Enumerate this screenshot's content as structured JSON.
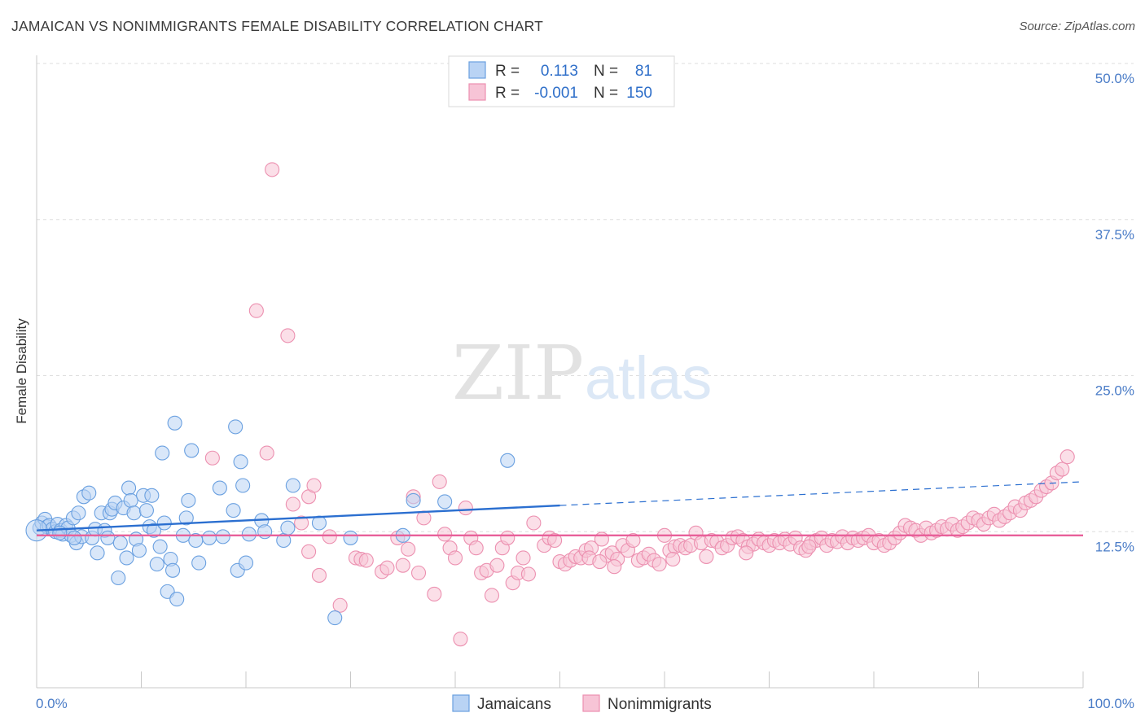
{
  "title": "JAMAICAN VS NONIMMIGRANTS FEMALE DISABILITY CORRELATION CHART",
  "source": "Source: ZipAtlas.com",
  "watermark": {
    "zip": "ZIP",
    "atlas": "atlas"
  },
  "chart_data": {
    "type": "scatter",
    "ylabel": "Female Disability",
    "xlabel": "",
    "xlim": [
      0,
      100
    ],
    "ylim": [
      0,
      50
    ],
    "y_ticks": [
      12.5,
      25.0,
      37.5,
      50.0
    ],
    "y_tick_labels": [
      "12.5%",
      "25.0%",
      "37.5%",
      "50.0%"
    ],
    "x_tick_labels": [
      "0.0%",
      "100.0%"
    ],
    "legend": {
      "position": "top-center",
      "rows": [
        {
          "r_label": "R =",
          "r_value": "0.113",
          "n_label": "N =",
          "n_value": "81"
        },
        {
          "r_label": "R =",
          "r_value": "-0.001",
          "n_label": "N =",
          "n_value": "150"
        }
      ]
    },
    "series": [
      {
        "name": "Jamaicans",
        "color": "#6aa0e0",
        "fill": "#b9d3f4",
        "trend": {
          "x0": 0,
          "y0": 12.6,
          "x1": 50,
          "y1": 14.6,
          "dash_to_x": 100,
          "dash_to_y": 16.5,
          "color": "#2b6fd0"
        },
        "points": [
          [
            0.3,
            12.8
          ],
          [
            0.5,
            13.2
          ],
          [
            0.8,
            13.5
          ],
          [
            1.0,
            12.9
          ],
          [
            1.2,
            13.0
          ],
          [
            1.5,
            12.7
          ],
          [
            1.8,
            12.5
          ],
          [
            2.0,
            13.1
          ],
          [
            2.3,
            12.6
          ],
          [
            2.5,
            12.3
          ],
          [
            2.8,
            13.0
          ],
          [
            3.0,
            12.8
          ],
          [
            3.3,
            12.2
          ],
          [
            3.5,
            13.6
          ],
          [
            3.8,
            11.6
          ],
          [
            4.0,
            14.0
          ],
          [
            4.3,
            12.1
          ],
          [
            4.5,
            15.3
          ],
          [
            5.0,
            15.6
          ],
          [
            5.3,
            12.0
          ],
          [
            5.6,
            12.7
          ],
          [
            5.8,
            10.8
          ],
          [
            6.2,
            14.0
          ],
          [
            6.5,
            12.6
          ],
          [
            6.8,
            12.0
          ],
          [
            7.0,
            14.0
          ],
          [
            7.2,
            14.3
          ],
          [
            7.5,
            14.8
          ],
          [
            7.8,
            8.8
          ],
          [
            8.0,
            11.6
          ],
          [
            8.3,
            14.4
          ],
          [
            8.6,
            10.4
          ],
          [
            8.8,
            16.0
          ],
          [
            9.0,
            15.0
          ],
          [
            9.3,
            14.0
          ],
          [
            9.5,
            11.9
          ],
          [
            9.8,
            11.0
          ],
          [
            10.2,
            15.4
          ],
          [
            10.5,
            14.2
          ],
          [
            10.8,
            12.9
          ],
          [
            11.0,
            15.4
          ],
          [
            11.2,
            12.6
          ],
          [
            11.5,
            9.9
          ],
          [
            11.8,
            11.3
          ],
          [
            12.0,
            18.8
          ],
          [
            12.2,
            13.2
          ],
          [
            12.5,
            7.7
          ],
          [
            12.8,
            10.3
          ],
          [
            13.0,
            9.4
          ],
          [
            13.2,
            21.2
          ],
          [
            13.4,
            7.1
          ],
          [
            14.0,
            12.2
          ],
          [
            14.3,
            13.6
          ],
          [
            14.5,
            15.0
          ],
          [
            14.8,
            19.0
          ],
          [
            15.2,
            11.8
          ],
          [
            15.5,
            10.0
          ],
          [
            16.5,
            12.0
          ],
          [
            17.5,
            16.0
          ],
          [
            17.8,
            12.1
          ],
          [
            18.8,
            14.2
          ],
          [
            19.0,
            20.9
          ],
          [
            19.2,
            9.4
          ],
          [
            19.5,
            18.1
          ],
          [
            19.7,
            16.2
          ],
          [
            20.0,
            10.0
          ],
          [
            20.3,
            12.3
          ],
          [
            21.5,
            13.4
          ],
          [
            21.8,
            12.5
          ],
          [
            23.6,
            11.8
          ],
          [
            24.0,
            12.8
          ],
          [
            24.5,
            16.2
          ],
          [
            27.0,
            13.2
          ],
          [
            28.5,
            5.6
          ],
          [
            30.0,
            12.0
          ],
          [
            35.0,
            12.2
          ],
          [
            36.0,
            15.0
          ],
          [
            39.0,
            14.9
          ],
          [
            45.0,
            18.2
          ],
          [
            3.6,
            12.0
          ],
          [
            2.2,
            12.4
          ]
        ]
      },
      {
        "name": "Nonimmigrants",
        "color": "#ec90b0",
        "fill": "#f7c4d6",
        "trend": {
          "x0": 0,
          "y0": 12.2,
          "x1": 100,
          "y1": 12.2,
          "color": "#e8609a"
        },
        "points": [
          [
            16.8,
            18.4
          ],
          [
            22.5,
            41.5
          ],
          [
            21.0,
            30.2
          ],
          [
            24.0,
            28.2
          ],
          [
            22.0,
            18.8
          ],
          [
            24.5,
            14.7
          ],
          [
            25.3,
            13.2
          ],
          [
            26.0,
            15.3
          ],
          [
            26.5,
            16.2
          ],
          [
            26.0,
            10.9
          ],
          [
            27.0,
            9.0
          ],
          [
            28.0,
            12.1
          ],
          [
            29.0,
            6.6
          ],
          [
            30.5,
            10.4
          ],
          [
            31.0,
            10.3
          ],
          [
            31.5,
            10.2
          ],
          [
            33.0,
            9.3
          ],
          [
            33.5,
            9.6
          ],
          [
            34.5,
            12.0
          ],
          [
            35.0,
            9.8
          ],
          [
            35.5,
            11.1
          ],
          [
            36.0,
            15.3
          ],
          [
            36.5,
            9.2
          ],
          [
            37.0,
            13.6
          ],
          [
            38.0,
            7.5
          ],
          [
            38.5,
            16.5
          ],
          [
            39.0,
            12.3
          ],
          [
            39.5,
            11.2
          ],
          [
            40.0,
            10.4
          ],
          [
            40.5,
            3.9
          ],
          [
            41.0,
            14.4
          ],
          [
            41.5,
            12.0
          ],
          [
            42.0,
            11.2
          ],
          [
            42.5,
            9.2
          ],
          [
            43.0,
            9.4
          ],
          [
            43.5,
            7.4
          ],
          [
            44.0,
            9.8
          ],
          [
            44.5,
            11.2
          ],
          [
            45.0,
            12.0
          ],
          [
            45.5,
            8.4
          ],
          [
            46.0,
            9.2
          ],
          [
            46.5,
            10.4
          ],
          [
            47.0,
            9.1
          ],
          [
            47.5,
            13.2
          ],
          [
            48.5,
            11.4
          ],
          [
            49.0,
            12.0
          ],
          [
            49.5,
            11.8
          ],
          [
            50.0,
            10.1
          ],
          [
            50.5,
            9.9
          ],
          [
            51.0,
            10.2
          ],
          [
            51.5,
            10.5
          ],
          [
            52.0,
            10.4
          ],
          [
            52.5,
            11.0
          ],
          [
            53.0,
            11.2
          ],
          [
            54.0,
            11.9
          ],
          [
            54.5,
            10.6
          ],
          [
            55.0,
            10.8
          ],
          [
            55.5,
            10.3
          ],
          [
            56.0,
            11.4
          ],
          [
            56.5,
            11.0
          ],
          [
            57.0,
            11.8
          ],
          [
            57.5,
            10.2
          ],
          [
            58.0,
            10.4
          ],
          [
            58.5,
            10.7
          ],
          [
            59.0,
            10.2
          ],
          [
            59.5,
            9.9
          ],
          [
            60.0,
            12.2
          ],
          [
            60.5,
            11.0
          ],
          [
            61.0,
            11.3
          ],
          [
            61.5,
            11.4
          ],
          [
            62.0,
            11.2
          ],
          [
            62.5,
            11.4
          ],
          [
            63.0,
            12.4
          ],
          [
            63.5,
            11.6
          ],
          [
            64.0,
            10.5
          ],
          [
            64.5,
            11.8
          ],
          [
            65.0,
            11.7
          ],
          [
            65.5,
            11.2
          ],
          [
            66.0,
            11.4
          ],
          [
            66.5,
            12.0
          ],
          [
            67.0,
            12.1
          ],
          [
            67.5,
            11.8
          ],
          [
            68.0,
            11.3
          ],
          [
            68.5,
            11.5
          ],
          [
            69.0,
            11.9
          ],
          [
            69.5,
            11.6
          ],
          [
            70.0,
            11.4
          ],
          [
            70.5,
            11.8
          ],
          [
            71.0,
            11.6
          ],
          [
            71.5,
            11.9
          ],
          [
            72.0,
            11.5
          ],
          [
            72.5,
            12.0
          ],
          [
            73.0,
            11.2
          ],
          [
            73.5,
            11.0
          ],
          [
            74.0,
            11.6
          ],
          [
            74.5,
            11.8
          ],
          [
            75.0,
            12.0
          ],
          [
            75.5,
            11.4
          ],
          [
            76.0,
            11.8
          ],
          [
            76.5,
            11.7
          ],
          [
            77.0,
            12.1
          ],
          [
            77.5,
            11.6
          ],
          [
            78.0,
            12.0
          ],
          [
            78.5,
            11.8
          ],
          [
            79.0,
            12.0
          ],
          [
            79.5,
            12.2
          ],
          [
            80.0,
            11.6
          ],
          [
            80.5,
            11.8
          ],
          [
            81.0,
            11.4
          ],
          [
            81.5,
            11.6
          ],
          [
            82.0,
            12.0
          ],
          [
            82.5,
            12.4
          ],
          [
            83.0,
            13.0
          ],
          [
            83.5,
            12.8
          ],
          [
            84.0,
            12.6
          ],
          [
            84.5,
            12.2
          ],
          [
            85.0,
            12.8
          ],
          [
            85.5,
            12.4
          ],
          [
            86.0,
            12.6
          ],
          [
            86.5,
            12.9
          ],
          [
            87.0,
            12.7
          ],
          [
            87.5,
            13.1
          ],
          [
            88.0,
            12.6
          ],
          [
            88.5,
            12.9
          ],
          [
            89.0,
            13.2
          ],
          [
            89.5,
            13.6
          ],
          [
            90.0,
            13.4
          ],
          [
            90.5,
            13.1
          ],
          [
            91.0,
            13.6
          ],
          [
            91.5,
            13.9
          ],
          [
            92.0,
            13.4
          ],
          [
            92.5,
            13.7
          ],
          [
            93.0,
            14.0
          ],
          [
            93.5,
            14.5
          ],
          [
            94.0,
            14.2
          ],
          [
            94.5,
            14.8
          ],
          [
            95.0,
            15.0
          ],
          [
            95.5,
            15.3
          ],
          [
            96.0,
            15.8
          ],
          [
            96.5,
            16.1
          ],
          [
            97.0,
            16.4
          ],
          [
            97.5,
            17.2
          ],
          [
            98.0,
            17.5
          ],
          [
            98.5,
            18.5
          ],
          [
            52.8,
            10.4
          ],
          [
            53.8,
            10.1
          ],
          [
            55.2,
            9.7
          ],
          [
            60.8,
            10.3
          ],
          [
            67.8,
            10.8
          ],
          [
            73.8,
            11.3
          ]
        ]
      }
    ]
  }
}
